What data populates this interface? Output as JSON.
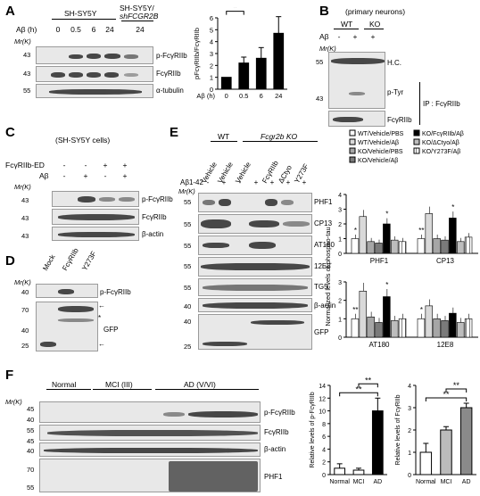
{
  "panels": {
    "A": {
      "letter": "A",
      "group1": "SH-SY5Y",
      "group2_line1": "SH-SY5Y/",
      "group2_line2": "shFCGR2B",
      "time_label": "Aβ (h)",
      "times": [
        "0",
        "0.5",
        "6",
        "24",
        "24"
      ],
      "mr_label": "Mr(K)",
      "blot_mw": [
        "43",
        "43",
        "55"
      ],
      "blot_labels": [
        "p-FcγRIIb",
        "FcγRIIb",
        "α-tubulin"
      ]
    },
    "B": {
      "letter": "B",
      "title": "(primary neurons)",
      "wt": "WT",
      "ko": "KO",
      "ab_label": "Aβ",
      "ab_signs": [
        "-",
        "+",
        "+"
      ],
      "mr_label": "Mr(K)",
      "mw": [
        "55",
        "43"
      ],
      "hc": "H.C.",
      "blot_labels": [
        "p-Tyr",
        "FcγRIIb"
      ],
      "ip": "IP : FcγRIIb"
    },
    "C": {
      "letter": "C",
      "title": "(SH-SY5Y cells)",
      "row1_label": "FcγRIIb-ED",
      "row1_signs": [
        "-",
        "-",
        "+",
        "+"
      ],
      "row2_label": "Aβ",
      "row2_signs": [
        "-",
        "+",
        "-",
        "+"
      ],
      "mr_label": "Mr(K)",
      "mw": [
        "43",
        "43",
        "43"
      ],
      "blot_labels": [
        "p-FcγRIIb",
        "FcγRIIb",
        "β-actin"
      ]
    },
    "D": {
      "letter": "D",
      "lanes": [
        "Mock",
        "FcγRIIb",
        "Y273F"
      ],
      "mr_label": "Mr(K)",
      "mw": [
        "40",
        "70",
        "40",
        "25"
      ],
      "blot_labels": [
        "p-FcγRIIb",
        "GFP"
      ]
    },
    "E": {
      "letter": "E",
      "wt": "WT",
      "ko": "Fcgr2b KO",
      "lanes": [
        "Vehicle",
        "Vehicle",
        "Vehicle",
        "FcγRIIb",
        "ΔCtyo",
        "Y273F"
      ],
      "ab_label": "Aβ1-42",
      "ab_signs": [
        "-",
        "+",
        "-",
        "+",
        "+",
        "+",
        "+"
      ],
      "mr_label": "Mr(K)",
      "mw": [
        "55",
        "55",
        "55",
        "55",
        "55",
        "40",
        "40",
        "25"
      ],
      "blot_labels": [
        "PHF1",
        "CP13",
        "AT180",
        "12E8",
        "TG5",
        "β-actin",
        "GFP"
      ]
    },
    "F": {
      "letter": "F",
      "groups": [
        "Normal",
        "MCI (III)",
        "AD (V/VI)"
      ],
      "mr_label": "Mr(K)",
      "mw": [
        "45",
        "40",
        "55",
        "45",
        "40",
        "70",
        "55"
      ],
      "blot_labels": [
        "p-FcγRIIb",
        "FcγRIIb",
        "β-actin",
        "PHF1"
      ]
    }
  },
  "chart_data": [
    {
      "type": "bar",
      "panel": "A",
      "categories": [
        "0",
        "0.5",
        "6",
        "24"
      ],
      "values": [
        1.0,
        2.2,
        2.6,
        4.7
      ],
      "errors": [
        0.0,
        0.5,
        0.9,
        1.4
      ],
      "xlabel": "Aβ (h)",
      "ylabel": "pFcγRIIb/FcγRIIb",
      "ylim": [
        0,
        6
      ],
      "yticks": [
        "0",
        "1",
        "2",
        "3",
        "4",
        "5",
        "6"
      ],
      "significance": [
        {
          "from": "0",
          "to": "0.5",
          "label": "*"
        },
        {
          "from": "0",
          "to": "6",
          "label": "*"
        },
        {
          "from": "0",
          "to": "24",
          "label": "**"
        }
      ]
    },
    {
      "type": "bar",
      "panel": "E",
      "ylabel": "Normalized levels of phospho-tau",
      "legend": [
        "WT/Vehicle/PBS",
        "WT/Vehicle/Aβ",
        "KO/Vehicle/PBS",
        "KO/Vehicle/Aβ",
        "KO/FcγRIIb/Aβ",
        "KO/ΔCtyo/Aβ",
        "KO/Y273F/Aβ"
      ],
      "top": {
        "categories": [
          "PHF1",
          "CP13"
        ],
        "ylim": [
          0,
          4
        ],
        "yticks": [
          "0",
          "1",
          "2",
          "3",
          "4"
        ],
        "series": [
          {
            "name": "WT/Vehicle/PBS",
            "values": [
              1.0,
              1.0
            ]
          },
          {
            "name": "WT/Vehicle/Aβ",
            "values": [
              2.5,
              2.7
            ]
          },
          {
            "name": "KO/Vehicle/PBS",
            "values": [
              0.8,
              1.0
            ]
          },
          {
            "name": "KO/Vehicle/Aβ",
            "values": [
              0.7,
              0.9
            ]
          },
          {
            "name": "KO/FcγRIIb/Aβ",
            "values": [
              2.0,
              2.4
            ]
          },
          {
            "name": "KO/ΔCtyo/Aβ",
            "values": [
              0.9,
              0.8
            ]
          },
          {
            "name": "KO/Y273F/Aβ",
            "values": [
              0.8,
              1.1
            ]
          }
        ],
        "stars": [
          [
            "*",
            "",
            "",
            "",
            "*",
            "",
            ""
          ],
          [
            "**",
            "",
            "",
            "",
            "*",
            "",
            ""
          ]
        ]
      },
      "bottom": {
        "categories": [
          "AT180",
          "12E8"
        ],
        "ylim": [
          0,
          3
        ],
        "yticks": [
          "0",
          "1",
          "2",
          "3"
        ],
        "series": [
          {
            "name": "WT/Vehicle/PBS",
            "values": [
              1.0,
              1.0
            ]
          },
          {
            "name": "WT/Vehicle/Aβ",
            "values": [
              2.5,
              1.7
            ]
          },
          {
            "name": "KO/Vehicle/PBS",
            "values": [
              1.1,
              1.0
            ]
          },
          {
            "name": "KO/Vehicle/Aβ",
            "values": [
              0.8,
              0.9
            ]
          },
          {
            "name": "KO/FcγRIIb/Aβ",
            "values": [
              2.2,
              1.3
            ]
          },
          {
            "name": "KO/ΔCtyo/Aβ",
            "values": [
              0.9,
              0.8
            ]
          },
          {
            "name": "KO/Y273F/Aβ",
            "values": [
              1.0,
              1.0
            ]
          }
        ],
        "stars": [
          [
            "**",
            "",
            "",
            "",
            "*",
            "",
            ""
          ],
          [
            "*",
            "",
            "",
            "",
            "",
            "",
            ""
          ]
        ]
      }
    },
    {
      "type": "bar",
      "panel": "F-left",
      "categories": [
        "Normal",
        "MCI",
        "AD"
      ],
      "values": [
        1.0,
        0.7,
        10.0
      ],
      "errors": [
        0.7,
        0.3,
        2.0
      ],
      "ylabel": "Relative levels of p-FcγRIIb",
      "ylim": [
        0,
        14
      ],
      "yticks": [
        "0",
        "2",
        "4",
        "6",
        "8",
        "10",
        "12",
        "14"
      ],
      "colors": [
        "#ffffff",
        "#ffffff",
        "#000000"
      ],
      "significance": [
        {
          "from": "Normal",
          "to": "AD",
          "label": "**"
        },
        {
          "from": "MCI",
          "to": "AD",
          "label": "**"
        }
      ]
    },
    {
      "type": "bar",
      "panel": "F-right",
      "categories": [
        "Normal",
        "MCI",
        "AD"
      ],
      "values": [
        1.0,
        2.0,
        3.0
      ],
      "errors": [
        0.4,
        0.15,
        0.2
      ],
      "ylabel": "Relative levels of FcγRIIb",
      "ylim": [
        0,
        4
      ],
      "yticks": [
        "0",
        "1",
        "2",
        "3",
        "4"
      ],
      "colors": [
        "#ffffff",
        "#bbbbbb",
        "#8a8a8a"
      ],
      "significance": [
        {
          "from": "Normal",
          "to": "AD",
          "label": "**"
        },
        {
          "from": "MCI",
          "to": "AD",
          "label": "**"
        }
      ]
    }
  ]
}
